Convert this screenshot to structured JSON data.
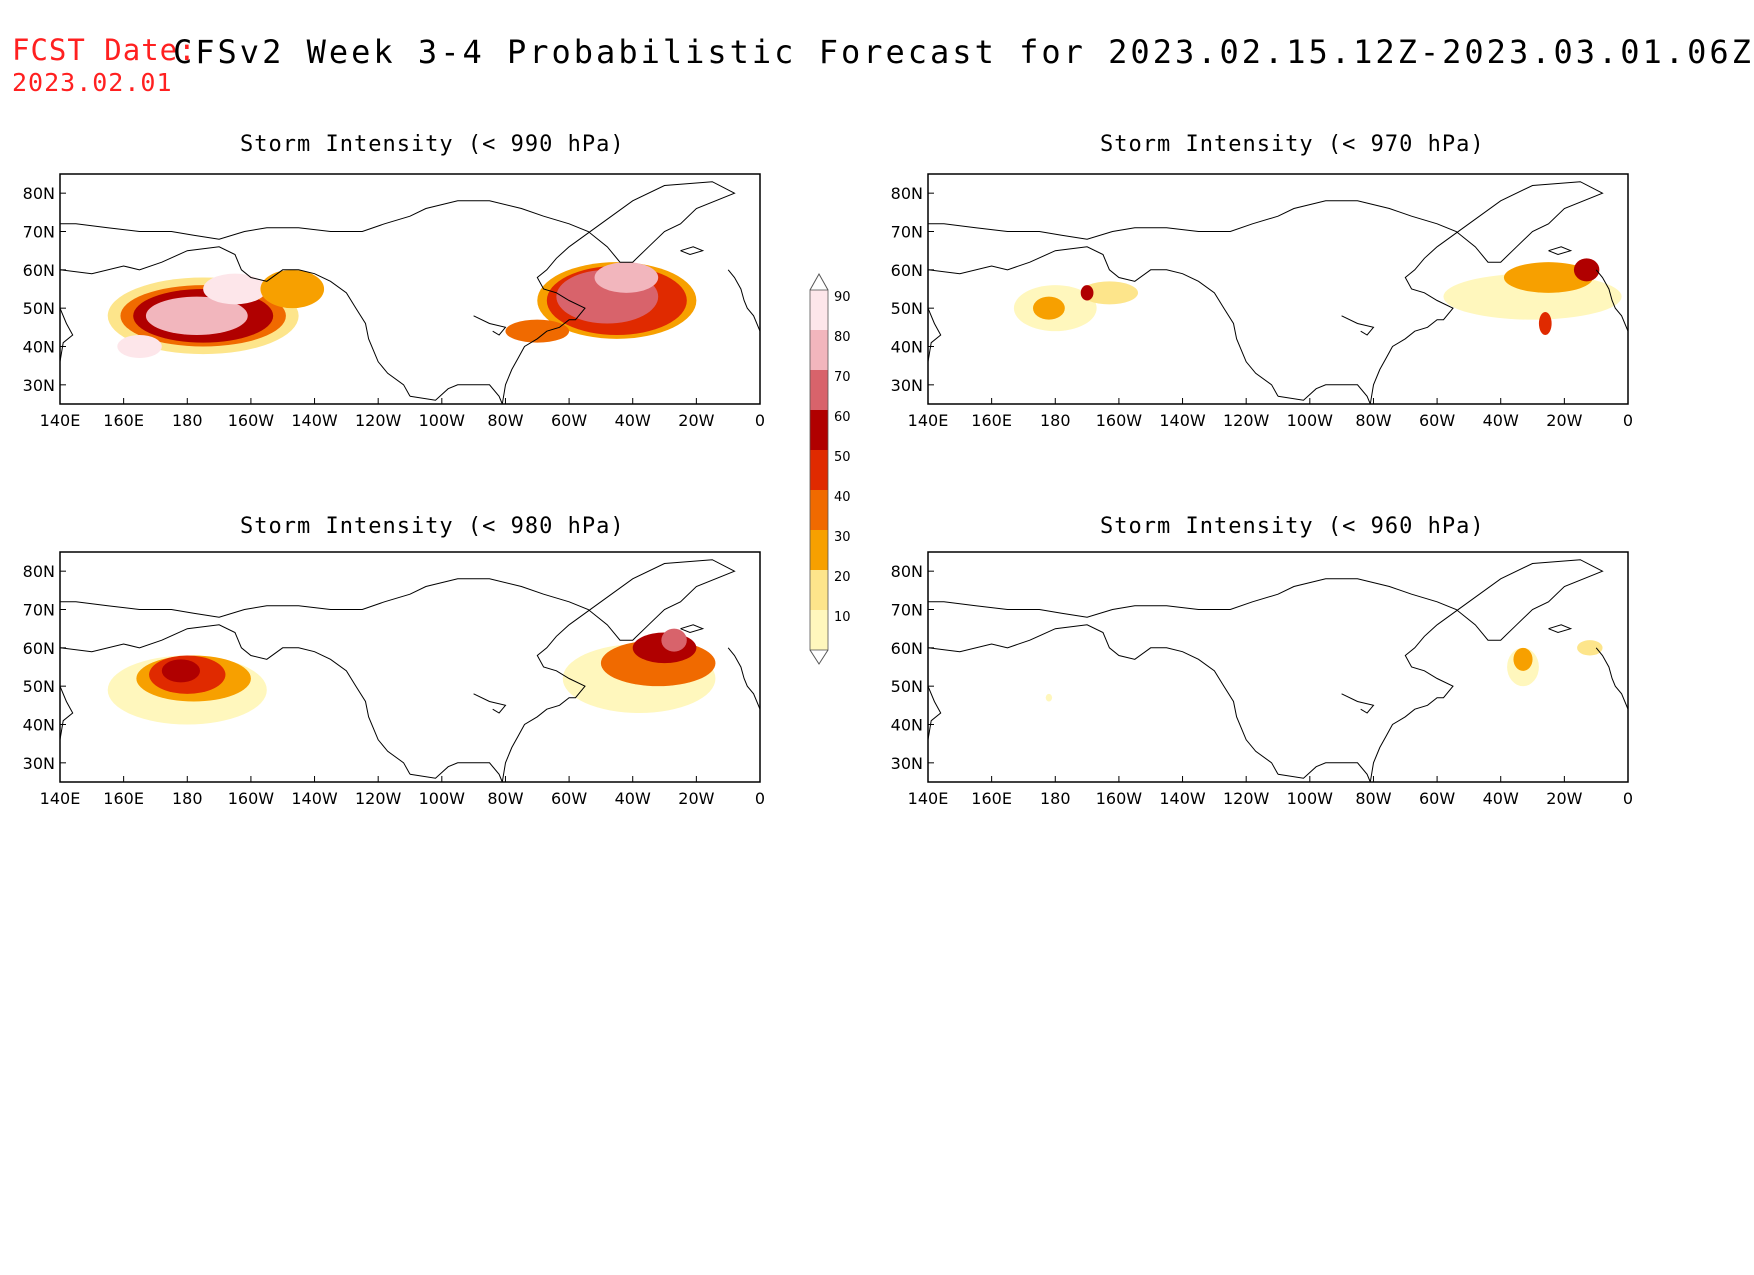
{
  "header": {
    "fcst_label": "FCST Date:",
    "fcst_date": "2023.02.01",
    "title": "CFSv2 Week 3-4 Probabilistic Forecast for 2023.02.15.12Z-2023.03.01.06Z"
  },
  "axes": {
    "lat_ticks": [
      "80N",
      "70N",
      "60N",
      "50N",
      "40N",
      "30N"
    ],
    "lat_values": [
      80,
      70,
      60,
      50,
      40,
      30
    ],
    "lon_ticks": [
      "140E",
      "160E",
      "180",
      "160W",
      "140W",
      "120W",
      "100W",
      "80W",
      "60W",
      "40W",
      "20W",
      "0"
    ],
    "lon_values": [
      140,
      160,
      180,
      200,
      220,
      240,
      260,
      280,
      300,
      320,
      340,
      360
    ],
    "lon_range": [
      140,
      360
    ],
    "lat_range": [
      25,
      85
    ]
  },
  "colorbar": {
    "levels": [
      "10",
      "20",
      "30",
      "40",
      "50",
      "60",
      "70",
      "80",
      "90"
    ],
    "colors": [
      "#fff7bd",
      "#fde58b",
      "#f7a000",
      "#f06a00",
      "#e02a00",
      "#b00000",
      "#d8636b",
      "#f2b6bd",
      "#fde6ea"
    ]
  },
  "panels": [
    {
      "id": "p990",
      "title": "Storm Intensity (< 990 hPa)",
      "blobs": [
        {
          "lon": 185,
          "lat": 48,
          "rx": 30,
          "ry": 10,
          "level": 1
        },
        {
          "lon": 185,
          "lat": 48,
          "rx": 26,
          "ry": 8,
          "level": 3
        },
        {
          "lon": 185,
          "lat": 48,
          "rx": 22,
          "ry": 7,
          "level": 5
        },
        {
          "lon": 183,
          "lat": 48,
          "rx": 16,
          "ry": 5,
          "level": 7
        },
        {
          "lon": 195,
          "lat": 55,
          "rx": 10,
          "ry": 4,
          "level": 8
        },
        {
          "lon": 165,
          "lat": 40,
          "rx": 7,
          "ry": 3,
          "level": 8
        },
        {
          "lon": 213,
          "lat": 55,
          "rx": 10,
          "ry": 5,
          "level": 2
        },
        {
          "lon": 315,
          "lat": 52,
          "rx": 25,
          "ry": 10,
          "level": 2
        },
        {
          "lon": 315,
          "lat": 52,
          "rx": 22,
          "ry": 9,
          "level": 4
        },
        {
          "lon": 312,
          "lat": 53,
          "rx": 16,
          "ry": 7,
          "level": 6
        },
        {
          "lon": 318,
          "lat": 58,
          "rx": 10,
          "ry": 4,
          "level": 7
        },
        {
          "lon": 290,
          "lat": 44,
          "rx": 10,
          "ry": 3,
          "level": 3
        }
      ]
    },
    {
      "id": "p970",
      "title": "Storm Intensity (< 970 hPa)",
      "blobs": [
        {
          "lon": 180,
          "lat": 50,
          "rx": 13,
          "ry": 6,
          "level": 0
        },
        {
          "lon": 178,
          "lat": 50,
          "rx": 5,
          "ry": 3,
          "level": 2
        },
        {
          "lon": 197,
          "lat": 54,
          "rx": 9,
          "ry": 3,
          "level": 1
        },
        {
          "lon": 190,
          "lat": 54,
          "rx": 2,
          "ry": 2,
          "level": 5
        },
        {
          "lon": 330,
          "lat": 53,
          "rx": 28,
          "ry": 6,
          "level": 0
        },
        {
          "lon": 335,
          "lat": 58,
          "rx": 14,
          "ry": 4,
          "level": 2
        },
        {
          "lon": 347,
          "lat": 60,
          "rx": 4,
          "ry": 3,
          "level": 5
        },
        {
          "lon": 334,
          "lat": 46,
          "rx": 2,
          "ry": 3,
          "level": 4
        }
      ]
    },
    {
      "id": "p980",
      "title": "Storm Intensity (< 980 hPa)",
      "blobs": [
        {
          "lon": 180,
          "lat": 49,
          "rx": 25,
          "ry": 9,
          "level": 0
        },
        {
          "lon": 182,
          "lat": 52,
          "rx": 18,
          "ry": 6,
          "level": 2
        },
        {
          "lon": 180,
          "lat": 53,
          "rx": 12,
          "ry": 5,
          "level": 4
        },
        {
          "lon": 178,
          "lat": 54,
          "rx": 6,
          "ry": 3,
          "level": 5
        },
        {
          "lon": 322,
          "lat": 52,
          "rx": 24,
          "ry": 9,
          "level": 0
        },
        {
          "lon": 328,
          "lat": 56,
          "rx": 18,
          "ry": 6,
          "level": 3
        },
        {
          "lon": 330,
          "lat": 60,
          "rx": 10,
          "ry": 4,
          "level": 5
        },
        {
          "lon": 333,
          "lat": 62,
          "rx": 4,
          "ry": 3,
          "level": 6
        }
      ]
    },
    {
      "id": "p960",
      "title": "Storm Intensity (< 960 hPa)",
      "blobs": [
        {
          "lon": 327,
          "lat": 55,
          "rx": 5,
          "ry": 5,
          "level": 0
        },
        {
          "lon": 327,
          "lat": 57,
          "rx": 3,
          "ry": 3,
          "level": 2
        },
        {
          "lon": 348,
          "lat": 60,
          "rx": 4,
          "ry": 2,
          "level": 1
        },
        {
          "lon": 178,
          "lat": 47,
          "rx": 1,
          "ry": 1,
          "level": 0
        }
      ]
    }
  ]
}
